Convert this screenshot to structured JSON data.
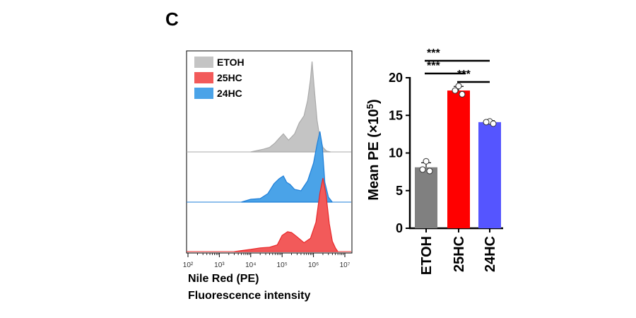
{
  "panel_label": "C",
  "colors": {
    "etoh_fill": "#c4c4c4",
    "etoh_line": "#aaaaaa",
    "hc25_fill": "#f25a5a",
    "hc25_line": "#e8282a",
    "hc24_fill": "#4aa3e8",
    "hc24_line": "#1f7fd8",
    "bar_etoh": "#808080",
    "bar_25hc": "#ff0000",
    "bar_24hc": "#5555ff"
  },
  "chart_data": [
    {
      "type": "area",
      "xaxis_scale": "log",
      "xlabel": "Nile Red (PE)",
      "xlabel_line2": "Fluorescence intensity",
      "xlim": [
        100,
        10000000
      ],
      "x_tick_labels": [
        "10²",
        "10³",
        "10⁴",
        "10⁵",
        "10⁶",
        "10⁷"
      ],
      "legend": [
        "ETOH",
        "25HC",
        "24HC"
      ],
      "legend_position": "top-left",
      "series": [
        {
          "name": "ETOH",
          "x": [
            10000,
            25000,
            40000,
            60000,
            80000,
            110000,
            160000,
            250000,
            350000,
            500000,
            650000,
            800000,
            900000,
            1050000,
            1300000,
            1600000,
            2000000,
            2600000,
            3500000
          ],
          "y": [
            0.0,
            0.03,
            0.05,
            0.1,
            0.15,
            0.2,
            0.13,
            0.2,
            0.32,
            0.4,
            0.57,
            0.8,
            1.0,
            0.72,
            0.35,
            0.15,
            0.05,
            0.01,
            0.0
          ]
        },
        {
          "name": "24HC",
          "x": [
            5000,
            10000,
            20000,
            35000,
            55000,
            80000,
            110000,
            140000,
            180000,
            250000,
            400000,
            650000,
            1000000,
            1300000,
            1600000,
            1900000,
            2300000,
            3000000,
            4000000
          ],
          "y": [
            0.0,
            0.04,
            0.05,
            0.12,
            0.26,
            0.33,
            0.37,
            0.28,
            0.25,
            0.18,
            0.16,
            0.3,
            0.55,
            0.82,
            1.0,
            0.8,
            0.28,
            0.07,
            0.0
          ]
        },
        {
          "name": "25HC",
          "x": [
            3000,
            10000,
            20000,
            40000,
            70000,
            100000,
            150000,
            200000,
            300000,
            500000,
            800000,
            1200000,
            1600000,
            2000000,
            2500000,
            3200000,
            4000000,
            5000000,
            6000000
          ],
          "y": [
            0.0,
            0.03,
            0.05,
            0.06,
            0.09,
            0.22,
            0.27,
            0.26,
            0.2,
            0.12,
            0.18,
            0.4,
            0.8,
            1.0,
            0.78,
            0.38,
            0.14,
            0.05,
            0.0
          ]
        }
      ]
    },
    {
      "type": "bar",
      "categories": [
        "ETOH",
        "25HC",
        "24HC"
      ],
      "values": [
        8.1,
        18.3,
        14.1
      ],
      "errors": [
        0.6,
        0.55,
        0.2
      ],
      "points": [
        [
          8.9,
          7.8,
          7.6
        ],
        [
          18.9,
          18.3,
          17.8
        ],
        [
          14.2,
          14.1,
          13.9
        ]
      ],
      "ylabel_prefix": "Mean PE (×10",
      "ylabel_exp": "5",
      "ylabel_suffix": ")",
      "ylim": [
        0,
        20
      ],
      "yticks": [
        0,
        5,
        10,
        15,
        20
      ],
      "significance": [
        {
          "from": "ETOH",
          "to": "24HC",
          "label": "***"
        },
        {
          "from": "ETOH",
          "to": "25HC",
          "label": "***"
        },
        {
          "from": "25HC",
          "to": "24HC",
          "label": "***"
        }
      ]
    }
  ]
}
